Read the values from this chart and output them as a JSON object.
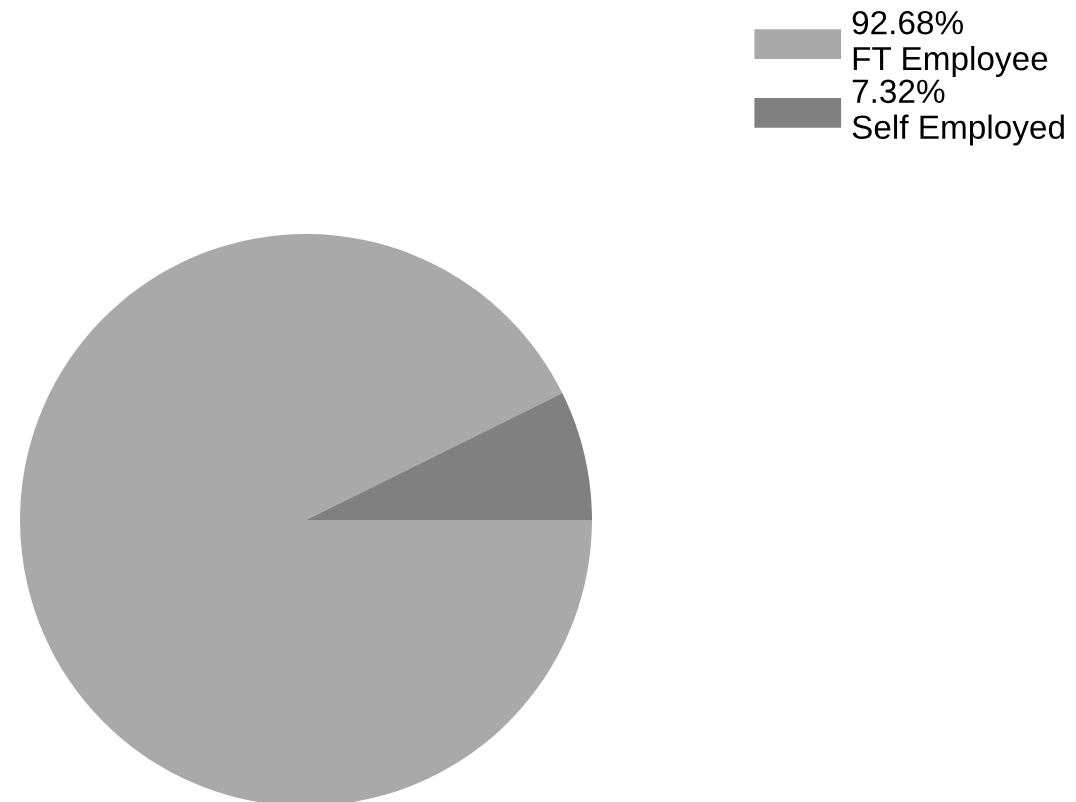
{
  "chart_data": {
    "type": "pie",
    "categories": [
      "FT Employee",
      "Self Employed"
    ],
    "values": [
      92.68,
      7.32
    ],
    "value_labels": [
      "92.68%",
      "7.32%"
    ],
    "colors": [
      "#a9a9a9",
      "#808080"
    ],
    "legend": "top right"
  }
}
